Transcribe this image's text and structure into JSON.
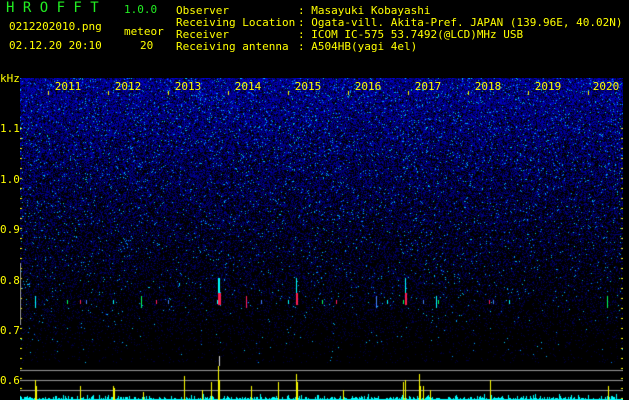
{
  "app": {
    "name": "H R O F F T",
    "version": "1.0.0"
  },
  "file": {
    "name": "0212202010.png",
    "datetime": "02.12.20 20:10"
  },
  "meteor": {
    "label": "meteor",
    "count": "20"
  },
  "info": [
    {
      "label": "Observer",
      "value": "Masayuki Kobayashi"
    },
    {
      "label": "Receiving Location",
      "value": "Ogata-vill. Akita-Pref. JAPAN (139.96E, 40.02N)"
    },
    {
      "label": "Receiver",
      "value": "ICOM IC-575 53.7492(@LCD)MHz USB"
    },
    {
      "label": "Receiving antenna",
      "value": "A504HB(yagi 4el)"
    }
  ],
  "axis": {
    "y_unit": "kHz",
    "y_ticks": [
      "1.1",
      "1.0",
      "0.9",
      "0.8",
      "0.7",
      "0.6"
    ],
    "x_ticks": [
      "2011",
      "2012",
      "2013",
      "2014",
      "2015",
      "2016",
      "2017",
      "2018",
      "2019",
      "2020"
    ]
  },
  "colors": {
    "text": "#ffff00",
    "title": "#22ee22",
    "noise": "#2020c0",
    "histogram": "#00ffff",
    "meteor_bar": "#ffff00"
  }
}
